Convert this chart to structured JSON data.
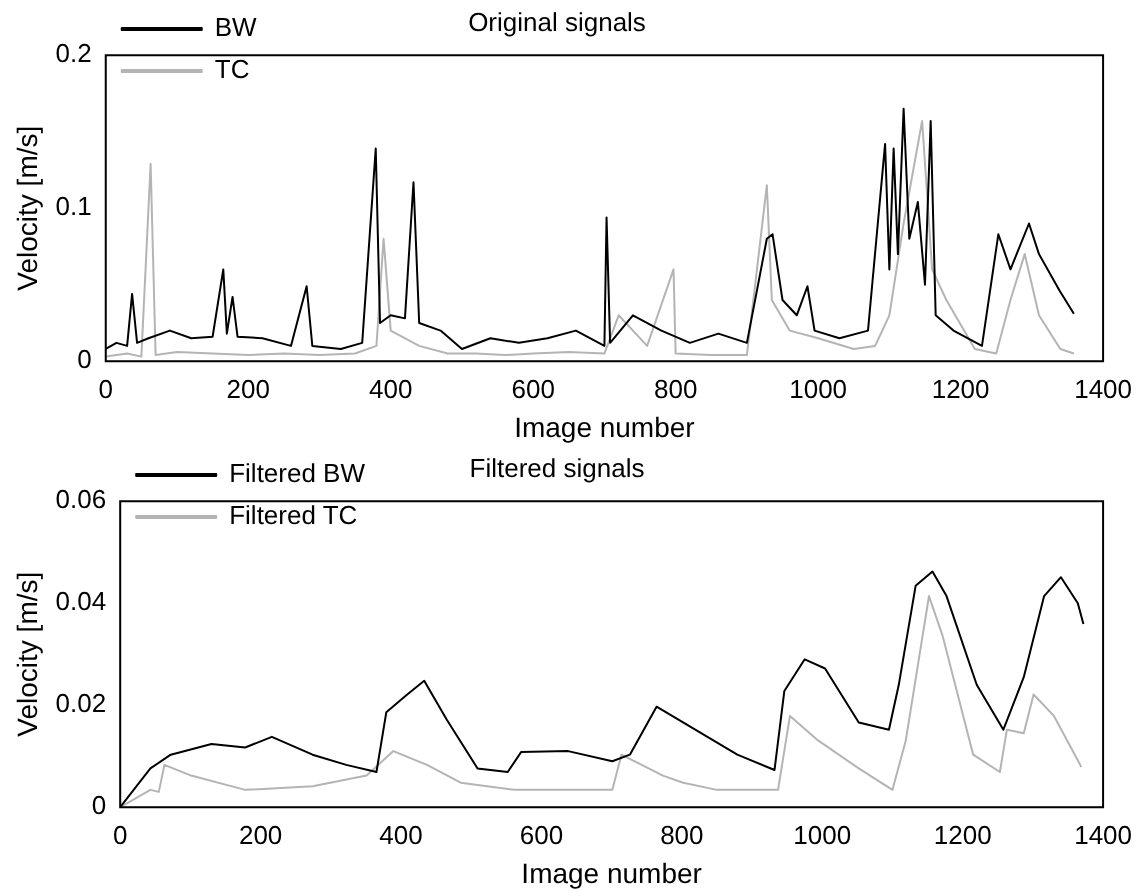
{
  "chart_data": [
    {
      "type": "line",
      "title": "Original signals",
      "xlabel": "Image number",
      "ylabel": "Velocity [m/s]",
      "xlim": [
        0,
        1400
      ],
      "xticks": [
        0,
        200,
        400,
        600,
        800,
        1000,
        1200,
        1400
      ],
      "ylim": [
        0,
        0.2
      ],
      "yticks": [
        0,
        0.1,
        0.2
      ],
      "grid": false,
      "legend": "top left",
      "series": [
        {
          "name": "BW",
          "color": "#000000",
          "x": [
            0,
            15,
            30,
            37,
            44,
            60,
            90,
            120,
            150,
            165,
            170,
            178,
            185,
            220,
            260,
            282,
            290,
            330,
            360,
            379,
            385,
            400,
            420,
            432,
            440,
            470,
            500,
            540,
            580,
            620,
            660,
            700,
            703,
            708,
            740,
            780,
            820,
            860,
            900,
            928,
            936,
            950,
            970,
            985,
            995,
            1030,
            1070,
            1094,
            1100,
            1106,
            1112,
            1120,
            1128,
            1140,
            1150,
            1158,
            1165,
            1190,
            1230,
            1253,
            1270,
            1296,
            1310,
            1339,
            1359
          ],
          "values": [
            0.008,
            0.012,
            0.01,
            0.044,
            0.012,
            0.015,
            0.02,
            0.015,
            0.016,
            0.06,
            0.018,
            0.042,
            0.016,
            0.015,
            0.01,
            0.049,
            0.01,
            0.008,
            0.012,
            0.139,
            0.025,
            0.03,
            0.028,
            0.117,
            0.025,
            0.02,
            0.008,
            0.015,
            0.012,
            0.015,
            0.02,
            0.01,
            0.094,
            0.012,
            0.03,
            0.02,
            0.012,
            0.018,
            0.012,
            0.08,
            0.083,
            0.04,
            0.03,
            0.049,
            0.02,
            0.015,
            0.02,
            0.142,
            0.06,
            0.139,
            0.07,
            0.165,
            0.08,
            0.104,
            0.05,
            0.157,
            0.03,
            0.02,
            0.01,
            0.083,
            0.06,
            0.09,
            0.07,
            0.046,
            0.031
          ]
        },
        {
          "name": "TC",
          "color": "#b4b4b4",
          "x": [
            0,
            30,
            50,
            63,
            70,
            100,
            150,
            200,
            250,
            300,
            350,
            380,
            390,
            400,
            440,
            480,
            520,
            560,
            600,
            650,
            700,
            720,
            760,
            797,
            800,
            850,
            900,
            928,
            935,
            960,
            1000,
            1050,
            1080,
            1100,
            1120,
            1146,
            1160,
            1180,
            1220,
            1250,
            1270,
            1290,
            1310,
            1340,
            1359
          ],
          "values": [
            0.003,
            0.005,
            0.003,
            0.129,
            0.004,
            0.006,
            0.005,
            0.004,
            0.005,
            0.004,
            0.005,
            0.01,
            0.08,
            0.02,
            0.01,
            0.005,
            0.005,
            0.004,
            0.005,
            0.006,
            0.005,
            0.03,
            0.01,
            0.06,
            0.005,
            0.004,
            0.004,
            0.115,
            0.04,
            0.02,
            0.015,
            0.008,
            0.01,
            0.03,
            0.09,
            0.157,
            0.06,
            0.04,
            0.008,
            0.005,
            0.04,
            0.07,
            0.03,
            0.008,
            0.005
          ]
        }
      ]
    },
    {
      "type": "line",
      "title": "Filtered signals",
      "xlabel": "Image number",
      "ylabel": "Velocity [m/s]",
      "xlim": [
        0,
        1400
      ],
      "xticks": [
        0,
        200,
        400,
        600,
        800,
        1000,
        1200,
        1400
      ],
      "ylim": [
        0,
        0.06
      ],
      "yticks": [
        0,
        0.02,
        0.04,
        0.06
      ],
      "grid": false,
      "legend": "top left",
      "series": [
        {
          "name": "Filtered BW",
          "color": "#000000",
          "x": [
            0,
            43,
            72,
            130,
            178,
            216,
            274,
            322,
            365,
            379,
            408,
            433,
            465,
            509,
            552,
            571,
            638,
            701,
            726,
            764,
            879,
            932,
            946,
            975,
            1004,
            1052,
            1095,
            1109,
            1133,
            1157,
            1177,
            1220,
            1258,
            1287,
            1316,
            1340,
            1364,
            1372
          ],
          "values": [
            0,
            0.0076,
            0.0103,
            0.0124,
            0.0117,
            0.0138,
            0.0103,
            0.0083,
            0.0069,
            0.0186,
            0.022,
            0.0248,
            0.0172,
            0.0076,
            0.0069,
            0.0108,
            0.011,
            0.009,
            0.0103,
            0.0197,
            0.0103,
            0.0073,
            0.0228,
            0.029,
            0.0272,
            0.0166,
            0.0152,
            0.024,
            0.0434,
            0.0462,
            0.0414,
            0.024,
            0.0152,
            0.0255,
            0.0414,
            0.0451,
            0.04,
            0.0359
          ]
        },
        {
          "name": "Filtered TC",
          "color": "#b4b4b4",
          "x": [
            0,
            43,
            55,
            63,
            101,
            178,
            274,
            351,
            389,
            437,
            485,
            561,
            701,
            714,
            773,
            802,
            850,
            922,
            937,
            954,
            994,
            1052,
            1100,
            1119,
            1152,
            1171,
            1215,
            1253,
            1263,
            1287,
            1301,
            1330,
            1369
          ],
          "values": [
            0,
            0.0034,
            0.003,
            0.0083,
            0.0062,
            0.0034,
            0.0041,
            0.0062,
            0.011,
            0.0083,
            0.0048,
            0.0034,
            0.0034,
            0.0103,
            0.0062,
            0.0048,
            0.0034,
            0.0034,
            0.0034,
            0.0179,
            0.0131,
            0.0076,
            0.0034,
            0.0131,
            0.0414,
            0.0338,
            0.0103,
            0.0069,
            0.0152,
            0.0145,
            0.0221,
            0.0179,
            0.0079
          ]
        }
      ]
    }
  ]
}
